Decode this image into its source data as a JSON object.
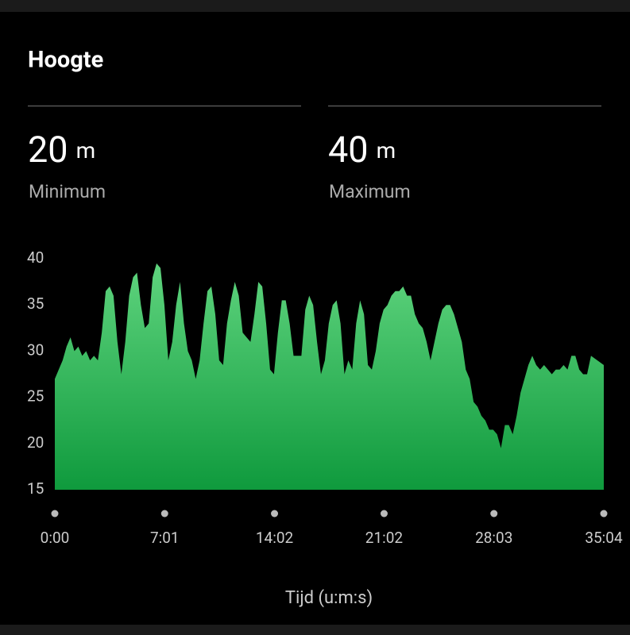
{
  "header": {
    "title": "Hoogte"
  },
  "stats": [
    {
      "value": "20",
      "unit": "m",
      "label": "Minimum"
    },
    {
      "value": "40",
      "unit": "m",
      "label": "Maximum"
    }
  ],
  "chart_data": {
    "type": "area",
    "xlabel": "Tijd (u:m:s)",
    "gradient": [
      "#5fd47e",
      "#0f9a3d"
    ],
    "xlim": [
      0,
      2104
    ],
    "xticks": [
      {
        "value": 0,
        "label": "0:00"
      },
      {
        "value": 421,
        "label": "7:01"
      },
      {
        "value": 842,
        "label": "14:02"
      },
      {
        "value": 1262,
        "label": "21:02"
      },
      {
        "value": 1683,
        "label": "28:03"
      },
      {
        "value": 2104,
        "label": "35:04"
      }
    ],
    "ylim": [
      15,
      40
    ],
    "yticks": [
      15,
      20,
      25,
      30,
      35,
      40
    ],
    "x": [
      0,
      15,
      30,
      45,
      60,
      75,
      90,
      105,
      120,
      135,
      150,
      165,
      180,
      195,
      210,
      225,
      240,
      255,
      270,
      285,
      300,
      315,
      330,
      345,
      360,
      375,
      390,
      405,
      420,
      435,
      450,
      465,
      480,
      495,
      510,
      525,
      540,
      555,
      570,
      585,
      600,
      615,
      630,
      645,
      660,
      675,
      690,
      705,
      720,
      735,
      750,
      765,
      780,
      795,
      810,
      825,
      840,
      855,
      870,
      885,
      900,
      915,
      930,
      945,
      960,
      975,
      990,
      1005,
      1020,
      1035,
      1050,
      1065,
      1080,
      1095,
      1110,
      1125,
      1140,
      1155,
      1170,
      1185,
      1200,
      1215,
      1230,
      1245,
      1260,
      1275,
      1290,
      1305,
      1320,
      1335,
      1350,
      1365,
      1380,
      1395,
      1410,
      1425,
      1440,
      1455,
      1470,
      1485,
      1500,
      1515,
      1530,
      1545,
      1560,
      1575,
      1590,
      1605,
      1620,
      1635,
      1650,
      1665,
      1680,
      1695,
      1710,
      1725,
      1740,
      1755,
      1770,
      1785,
      1800,
      1815,
      1830,
      1845,
      1860,
      1875,
      1890,
      1905,
      1920,
      1935,
      1950,
      1965,
      1980,
      1995,
      2010,
      2025,
      2040,
      2055,
      2104
    ],
    "values": [
      27,
      28,
      29,
      30.5,
      31.5,
      30,
      30.5,
      29.5,
      30,
      29,
      29.5,
      29,
      32,
      36.5,
      37,
      36,
      31,
      27.5,
      31,
      36,
      38,
      38.5,
      35,
      32.5,
      33,
      38,
      39.5,
      39,
      35,
      29,
      31,
      35,
      37.5,
      33,
      30,
      29,
      27,
      29,
      33,
      36.5,
      37,
      34,
      29,
      28.5,
      33,
      35.5,
      37.5,
      36,
      32,
      31.5,
      31,
      34,
      37.5,
      37,
      33,
      28,
      27.5,
      32,
      35.5,
      35.5,
      33,
      29.5,
      29.5,
      29.5,
      34.5,
      36,
      35,
      31,
      27.5,
      29,
      33,
      35,
      35.5,
      33,
      27.5,
      29,
      28,
      33,
      35.5,
      34,
      28.5,
      28,
      30,
      33,
      34.5,
      35,
      36,
      36.5,
      36.5,
      37,
      36,
      36,
      34,
      33,
      32.5,
      31,
      29,
      31,
      33,
      34.5,
      35,
      35,
      34,
      32.5,
      31,
      28,
      27,
      24.5,
      24,
      23,
      22.5,
      21.5,
      21.5,
      21,
      19.5,
      22,
      22,
      21,
      23,
      25.5,
      27,
      28.5,
      29.5,
      28.5,
      28,
      28.5,
      28,
      27.5,
      28,
      28,
      28.5,
      28,
      29.5,
      29.5,
      28,
      27.5,
      27.5,
      29.5,
      28.5
    ]
  }
}
